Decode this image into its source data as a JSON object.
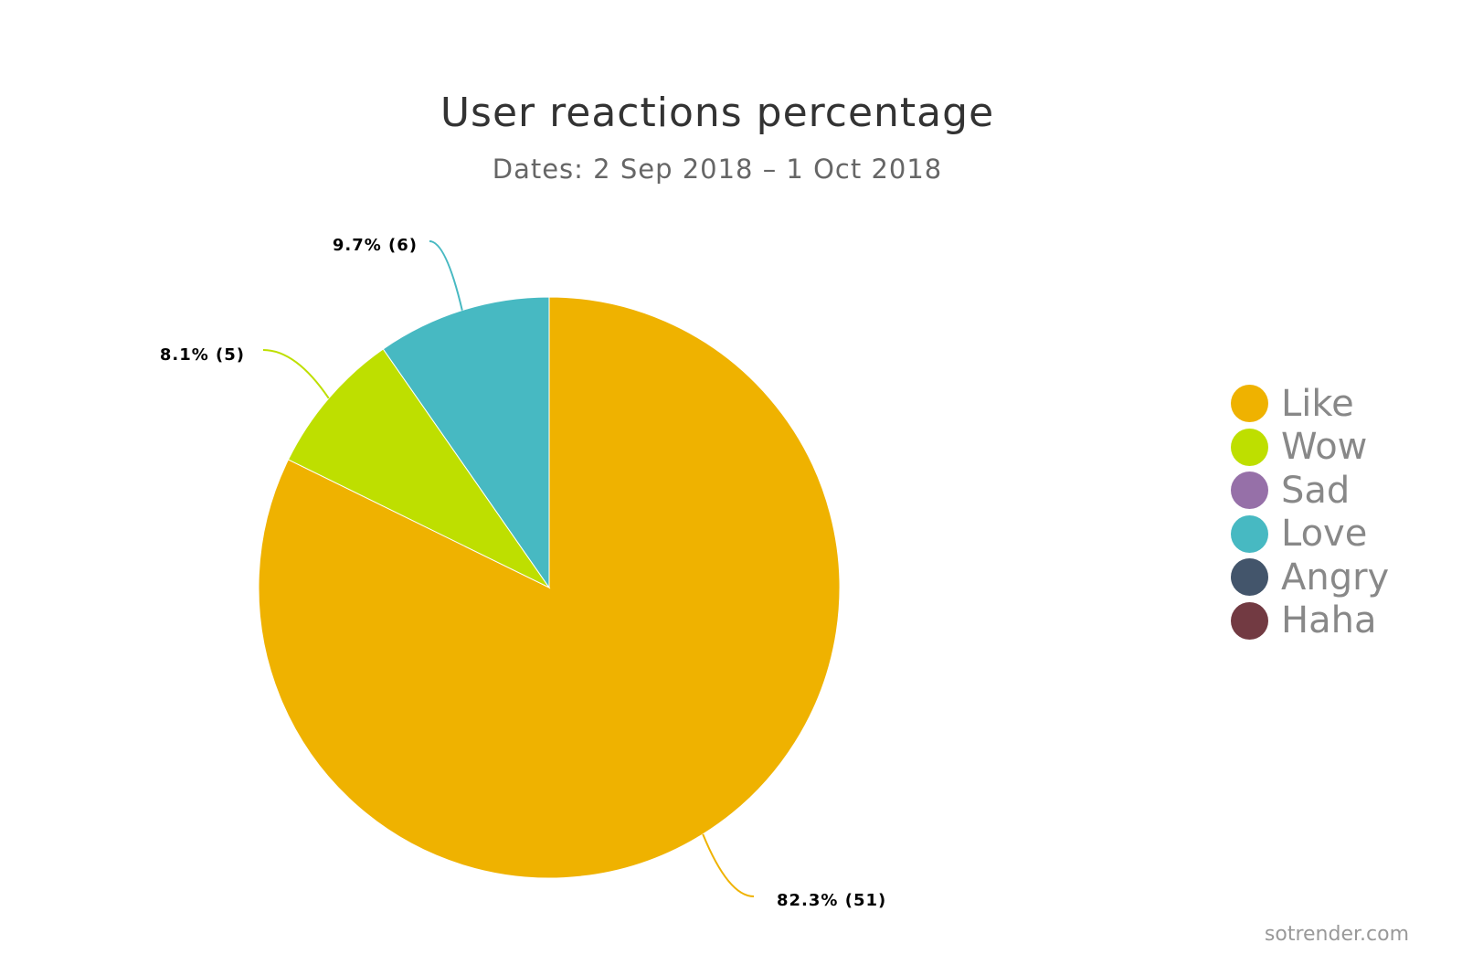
{
  "chart_data": {
    "type": "pie",
    "title": "User reactions percentage",
    "subtitle": "Dates: 2 Sep 2018 – 1 Oct 2018",
    "slices": [
      {
        "name": "Like",
        "value": 51,
        "percent": 82.3,
        "label": "82.3% (51)",
        "color": "#EFB200"
      },
      {
        "name": "Wow",
        "value": 5,
        "percent": 8.1,
        "label": "8.1% (5)",
        "color": "#BEDF00"
      },
      {
        "name": "Sad",
        "value": 0,
        "percent": 0,
        "label": "",
        "color": "#9670A8"
      },
      {
        "name": "Love",
        "value": 6,
        "percent": 9.7,
        "label": "9.7% (6)",
        "color": "#47B9C2"
      },
      {
        "name": "Angry",
        "value": 0,
        "percent": 0,
        "label": "",
        "color": "#43556B"
      },
      {
        "name": "Haha",
        "value": 0,
        "percent": 0,
        "label": "",
        "color": "#723A42"
      }
    ],
    "legend_position": "right"
  },
  "credit": "sotrender.com"
}
